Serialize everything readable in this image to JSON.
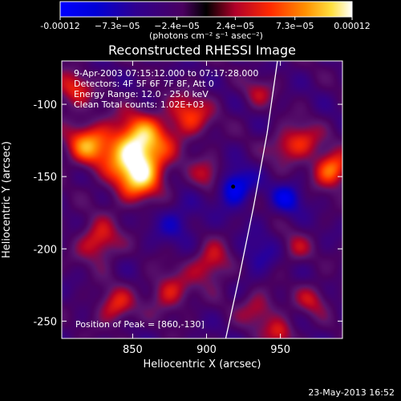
{
  "chart_data": {
    "type": "heatmap",
    "title": "Reconstructed RHESSI Image",
    "xlabel": "Heliocentric X (arcsec)",
    "ylabel": "Heliocentric Y (arcsec)",
    "xlim": [
      802,
      992
    ],
    "ylim": [
      -262,
      -70
    ],
    "x_ticks": [
      850,
      900,
      950
    ],
    "y_ticks": [
      -100,
      -150,
      -200,
      -250
    ],
    "colorbar": {
      "range": [
        -0.00012,
        0.00012
      ],
      "tick_labels": [
        "-0.00012",
        "−7.3e−05",
        "−2.4e−05",
        "2.4e−05",
        "7.3e−05",
        "0.00012"
      ],
      "tick_values": [
        -0.00012,
        -7.3e-05,
        -2.4e-05,
        2.4e-05,
        7.3e-05,
        0.00012
      ],
      "label": "(photons cm⁻² s⁻¹ asec⁻²)"
    },
    "annotations": [
      "9-Apr-2003 07:15:12.000 to 07:17:28.000",
      "Detectors: 4F 5F 6F 7F 8F, Att 0",
      "Energy Range: 12.0 - 25.0 keV",
      "Clean     Total counts: 1.02E+03"
    ],
    "peak_text": "Position of Peak = [860,-130]",
    "peak": [
      860,
      -130
    ],
    "limb_curve": [
      [
        948,
        -70
      ],
      [
        941,
        -120
      ],
      [
        932,
        -170
      ],
      [
        922,
        -220
      ],
      [
        913,
        -262
      ]
    ],
    "marker": [
      918,
      -157
    ],
    "sources": [
      {
        "x": 854,
        "y": -127,
        "amp": 1.0,
        "sigma": 14
      },
      {
        "x": 853,
        "y": -150,
        "amp": 0.85,
        "sigma": 13
      },
      {
        "x": 820,
        "y": -128,
        "amp": 0.75,
        "sigma": 11
      },
      {
        "x": 827,
        "y": -195,
        "amp": 0.6,
        "sigma": 10
      },
      {
        "x": 838,
        "y": -240,
        "amp": 0.55,
        "sigma": 9
      },
      {
        "x": 875,
        "y": -230,
        "amp": 0.5,
        "sigma": 10
      },
      {
        "x": 888,
        "y": -108,
        "amp": 0.6,
        "sigma": 11
      },
      {
        "x": 902,
        "y": -150,
        "amp": 0.45,
        "sigma": 9
      },
      {
        "x": 903,
        "y": -210,
        "amp": 0.55,
        "sigma": 10
      },
      {
        "x": 935,
        "y": -242,
        "amp": 0.45,
        "sigma": 9
      },
      {
        "x": 952,
        "y": -130,
        "amp": 0.35,
        "sigma": 8
      },
      {
        "x": 965,
        "y": -125,
        "amp": 0.5,
        "sigma": 9
      },
      {
        "x": 985,
        "y": -145,
        "amp": 0.8,
        "sigma": 9
      },
      {
        "x": 960,
        "y": -200,
        "amp": 0.35,
        "sigma": 8
      },
      {
        "x": 972,
        "y": -235,
        "amp": 0.4,
        "sigma": 8
      },
      {
        "x": 950,
        "y": -258,
        "amp": 0.5,
        "sigma": 7
      },
      {
        "x": 810,
        "y": -90,
        "amp": 0.55,
        "sigma": 9
      },
      {
        "x": 935,
        "y": -92,
        "amp": 0.35,
        "sigma": 8
      },
      {
        "x": 918,
        "y": -157,
        "amp": -0.7,
        "sigma": 9
      },
      {
        "x": 955,
        "y": -165,
        "amp": -0.45,
        "sigma": 8
      },
      {
        "x": 880,
        "y": -180,
        "amp": -0.3,
        "sigma": 12
      },
      {
        "x": 935,
        "y": -205,
        "amp": -0.3,
        "sigma": 10
      }
    ]
  },
  "footer": {
    "date": "23-May-2013 16:52"
  }
}
